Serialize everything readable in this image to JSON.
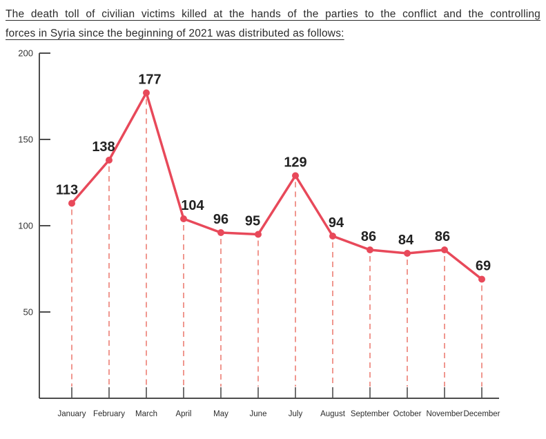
{
  "title": {
    "lines": [
      "The death toll of civilian victims killed at the hands of the parties to the conflict and the controlling",
      "forces in Syria since the beginning of 2021 was distributed as follows:"
    ]
  },
  "chart_data": {
    "type": "line",
    "title": "The death toll of civilian victims killed at the hands of the parties to the conflict and the controlling forces in Syria since the beginning of 2021 was distributed as follows:",
    "categories": [
      "January",
      "February",
      "March",
      "April",
      "May",
      "June",
      "July",
      "August",
      "September",
      "October",
      "November",
      "December"
    ],
    "values": [
      113,
      138,
      177,
      104,
      96,
      95,
      129,
      94,
      86,
      84,
      86,
      69
    ],
    "xlabel": "",
    "ylabel": "",
    "ylim": [
      0,
      200
    ],
    "yticks": [
      50,
      100,
      150,
      200
    ],
    "grid": false,
    "legend": false,
    "marker": "circle",
    "drop_lines": "dashed"
  },
  "theme": {
    "line_color": "#e8495a",
    "marker_color": "#e8495a",
    "drop_line_color": "#f0978f",
    "axis_color": "#4c4c4c",
    "value_label_color": "#222222",
    "tick_label_color": "#333333",
    "title_color": "#2b2b2b",
    "background": "#ffffff"
  }
}
